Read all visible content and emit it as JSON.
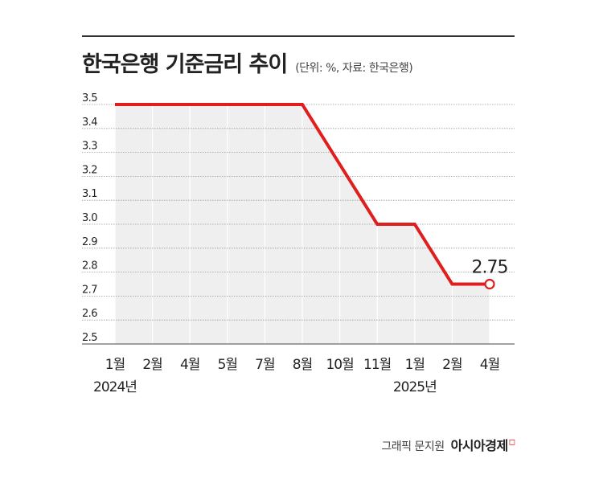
{
  "header": {
    "title": "한국은행 기준금리 추이",
    "subtitle": "(단위: %, 자료: 한국은행)"
  },
  "credit": {
    "text": "그래픽 문지원",
    "brand": "아시아경제"
  },
  "colors": {
    "line": "#e01e1e",
    "area": "#efefef",
    "grid": "#9a9a9a",
    "text": "#222222"
  },
  "chart_data": {
    "type": "line",
    "title": "한국은행 기준금리 추이",
    "xlabel": "",
    "ylabel": "",
    "categories": [
      "1월",
      "2월",
      "4월",
      "5월",
      "7월",
      "8월",
      "10월",
      "11월",
      "1월",
      "2월",
      "4월"
    ],
    "year_labels": [
      {
        "index": 0,
        "label": "2024년"
      },
      {
        "index": 8,
        "label": "2025년"
      }
    ],
    "series": [
      {
        "values": [
          3.5,
          3.5,
          3.5,
          3.5,
          3.5,
          3.5,
          3.25,
          3.0,
          3.0,
          2.75,
          2.75
        ]
      }
    ],
    "yticks": [
      "3.5",
      "3.4",
      "3.3",
      "3.2",
      "3.1",
      "3.0",
      "2.9",
      "2.8",
      "2.7",
      "2.6",
      "2.5"
    ],
    "ylim": [
      2.5,
      3.5
    ],
    "annotations": [
      {
        "index": 10,
        "text": "2.75"
      }
    ],
    "area_fill": true,
    "grid": true
  }
}
